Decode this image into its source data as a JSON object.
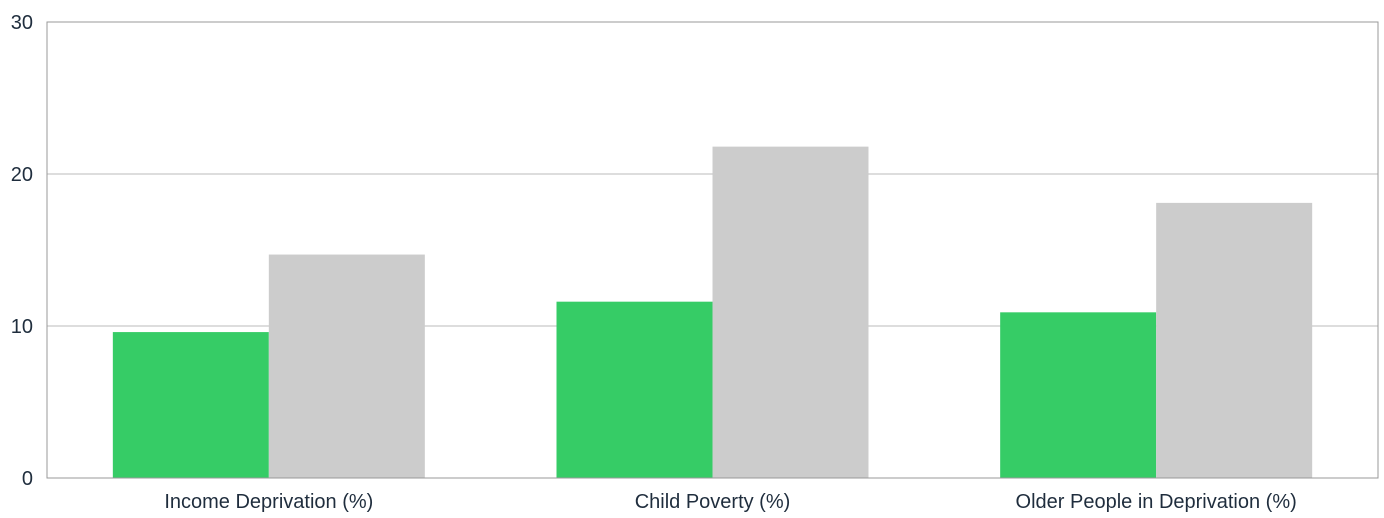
{
  "chart_data": {
    "type": "bar",
    "categories": [
      "Income Deprivation (%)",
      "Child Poverty (%)",
      "Older People in Deprivation (%)"
    ],
    "series": [
      {
        "values": [
          9.6,
          11.6,
          10.9
        ],
        "color": "#36cc66"
      },
      {
        "values": [
          14.7,
          21.8,
          18.1
        ],
        "color": "#cccccc"
      }
    ],
    "ylim": [
      0,
      30
    ],
    "yticks": [
      "0",
      "10",
      "20",
      "30"
    ],
    "grid": true,
    "legend": "none"
  }
}
